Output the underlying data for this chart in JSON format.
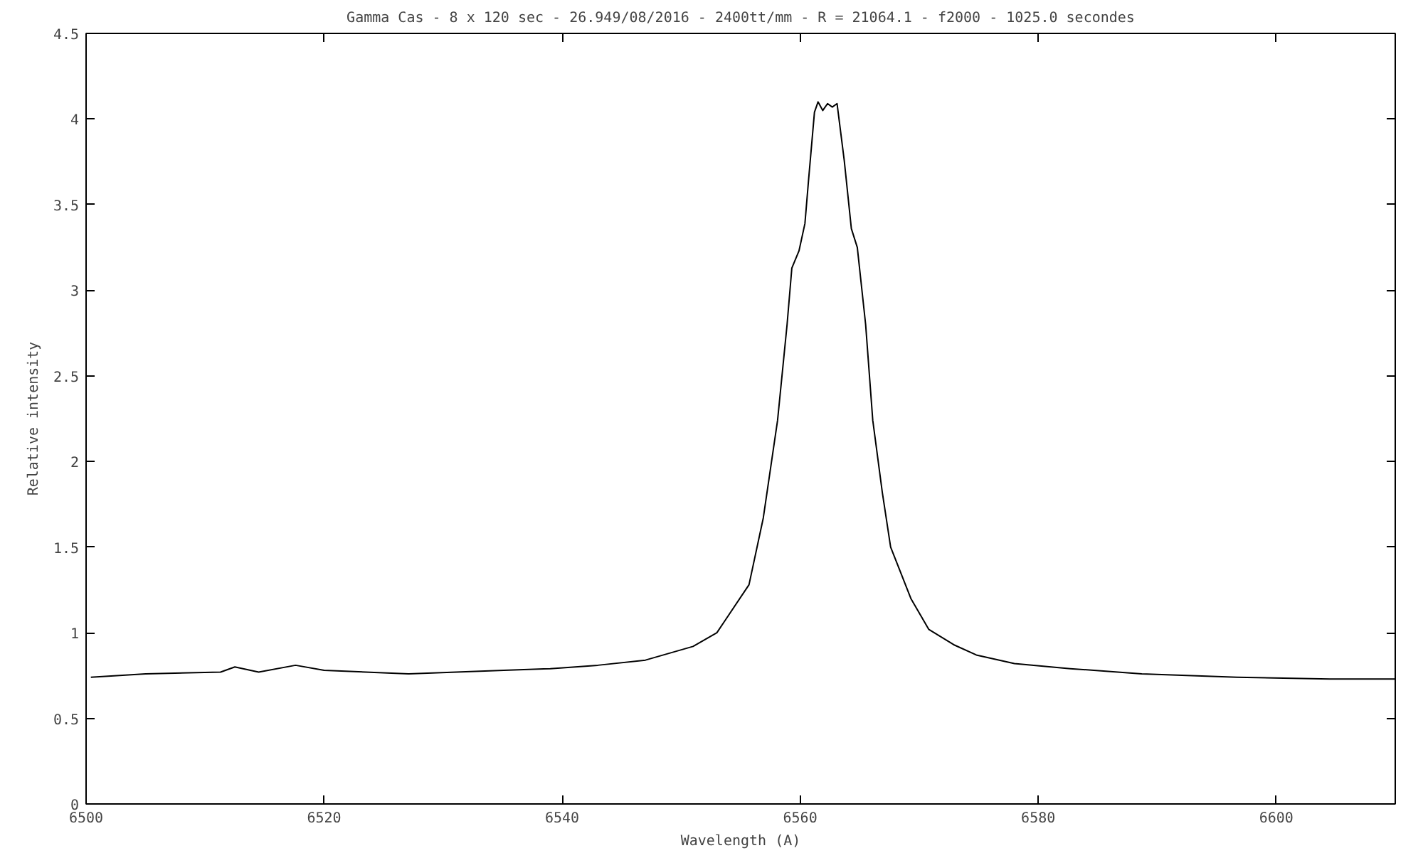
{
  "chart_data": {
    "type": "line",
    "title": "Gamma Cas - 8 x 120 sec - 26.949/08/2016 - 2400tt/mm - R = 21064.1 - f2000 - 1025.0 secondes",
    "xlabel": "Wavelength (A)",
    "ylabel": "Relative intensity",
    "x": [
      6500.4,
      6505,
      6511.3,
      6512.5,
      6514.5,
      6517.6,
      6520,
      6527.1,
      6535.1,
      6539,
      6543,
      6547,
      6551,
      6553,
      6555.7,
      6556.9,
      6558.1,
      6558.9,
      6559.3,
      6559.9,
      6560.4,
      6560.7,
      6561.2,
      6561.5,
      6561.9,
      6562.3,
      6562.7,
      6563.1,
      6563.3,
      6563.7,
      6564.3,
      6564.8,
      6565.5,
      6566.1,
      6566.9,
      6567.6,
      6569.3,
      6570.8,
      6572.9,
      6574.8,
      6578,
      6582.7,
      6588.7,
      6596.7,
      6604.5,
      6610
    ],
    "series": [
      {
        "color": "#000000",
        "values": [
          0.74,
          0.76,
          0.77,
          0.8,
          0.77,
          0.81,
          0.78,
          0.76,
          0.78,
          0.79,
          0.81,
          0.84,
          0.92,
          1.0,
          1.28,
          1.67,
          2.24,
          2.8,
          3.13,
          3.23,
          3.39,
          3.64,
          4.04,
          4.1,
          4.05,
          4.09,
          4.07,
          4.09,
          3.98,
          3.76,
          3.36,
          3.25,
          2.8,
          2.24,
          1.82,
          1.5,
          1.2,
          1.02,
          0.93,
          0.87,
          0.82,
          0.79,
          0.76,
          0.74,
          0.73,
          0.73
        ]
      }
    ],
    "xlim": [
      6500,
      6610
    ],
    "ylim": [
      0,
      4.5
    ],
    "xticks": [
      6500,
      6520,
      6540,
      6560,
      6580,
      6600
    ],
    "yticks": [
      0,
      0.5,
      1,
      1.5,
      2,
      2.5,
      3,
      3.5,
      4,
      4.5
    ],
    "grid": false,
    "marker": "none",
    "line_style": "solid"
  }
}
